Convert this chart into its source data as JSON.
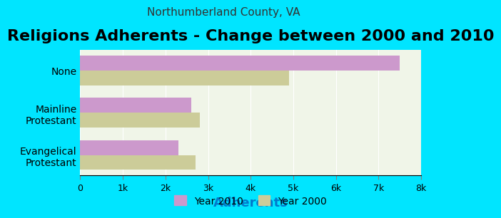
{
  "title": "Religions Adherents - Change between 2000 and 2010",
  "subtitle": "Northumberland County, VA",
  "xlabel": "Adherents",
  "categories": [
    "Evangelical\nProtestant",
    "Mainline\nProtestant",
    "None"
  ],
  "year2010_values": [
    2300,
    2600,
    7500
  ],
  "year2000_values": [
    2700,
    2800,
    4900
  ],
  "color_2010": "#cc99cc",
  "color_2000": "#cccc99",
  "background_outer": "#00e5ff",
  "background_inner": "#f0f5e8",
  "xlim": [
    0,
    8000
  ],
  "xtick_labels": [
    "0",
    "1k",
    "2k",
    "3k",
    "4k",
    "5k",
    "6k",
    "7k",
    "8k"
  ],
  "xtick_values": [
    0,
    1000,
    2000,
    3000,
    4000,
    5000,
    6000,
    7000,
    8000
  ],
  "bar_height": 0.35,
  "title_fontsize": 16,
  "subtitle_fontsize": 11,
  "xlabel_fontsize": 13,
  "legend_label_2010": "Year 2010",
  "legend_label_2000": "Year 2000"
}
